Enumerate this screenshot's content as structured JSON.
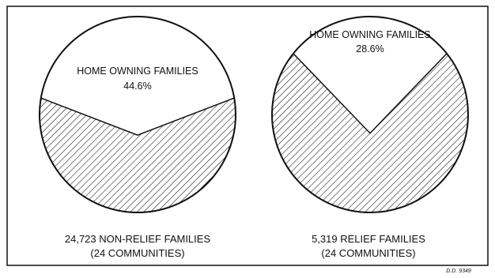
{
  "chart_data": [
    {
      "type": "pie",
      "slices": [
        {
          "label": "HOME OWNING FAMILIES",
          "value": 44.6,
          "value_label": "44.6%",
          "fill": "none"
        },
        {
          "label": "",
          "value": 55.4,
          "value_label": "",
          "fill": "hatched"
        }
      ],
      "caption_lines": [
        "24,723 NON-RELIEF FAMILIES",
        "(24  COMMUNITIES)"
      ]
    },
    {
      "type": "pie",
      "slices": [
        {
          "label": "HOME OWNING FAMILIES",
          "value": 28.6,
          "value_label": "28.6%",
          "fill": "none"
        },
        {
          "label": "",
          "value": 71.4,
          "value_label": "",
          "fill": "hatched"
        }
      ],
      "caption_lines": [
        "5,319 RELIEF FAMILIES",
        "(24  COMMUNITIES)"
      ]
    }
  ],
  "footnote": "D.D. 9349",
  "colors": {
    "ink": "#111111",
    "paper": "#ffffff"
  }
}
